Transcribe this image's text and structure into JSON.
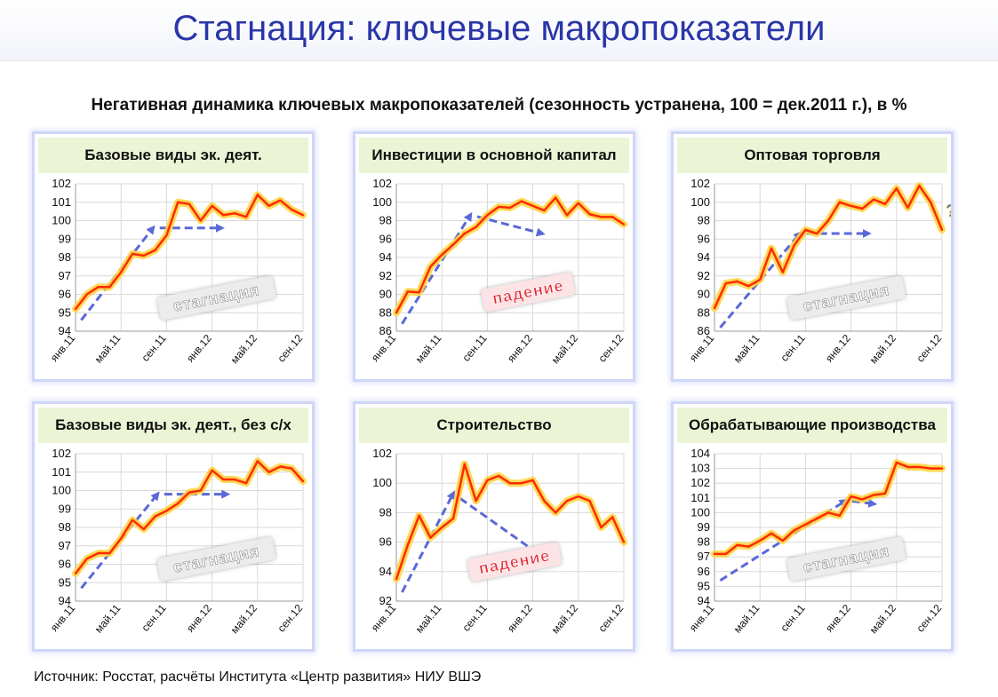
{
  "slide_title": "Стагнация: ключевые макропоказатели",
  "subtitle": "Негативная динамика ключевых макропоказателей  (сезонность устранена, 100 = дек.2011 г.), в %",
  "source": "Источник: Росстат, расчёты Института «Центр развития» НИУ ВШЭ",
  "colors": {
    "title": "#2a35a8",
    "line": "#ff2a00",
    "glow": "#ffd23a",
    "trend": "#5a68d8",
    "header_bg": "#ebf5d6",
    "panel_border": "#cfd6f6"
  },
  "chart_data": [
    {
      "type": "line",
      "title": "Базовые виды эк. деят.",
      "categories": [
        "янв.11",
        "фев.11",
        "мар.11",
        "апр.11",
        "май.11",
        "июн.11",
        "июл.11",
        "авг.11",
        "сен.11",
        "окт.11",
        "ноя.11",
        "дек.11",
        "янв.12",
        "фев.12",
        "мар.12",
        "апр.12",
        "май.12",
        "июн.12",
        "июл.12",
        "авг.12",
        "сен.12"
      ],
      "tick_labels": [
        "янв.11",
        "май.11",
        "сен.11",
        "янв.12",
        "май.12",
        "сен.12"
      ],
      "values": [
        95.2,
        96.0,
        96.4,
        96.4,
        97.2,
        98.2,
        98.1,
        98.4,
        99.2,
        101.0,
        100.9,
        100.0,
        100.8,
        100.3,
        100.4,
        100.2,
        101.4,
        100.8,
        101.1,
        100.6,
        100.3
      ],
      "ylim": [
        94,
        102
      ],
      "yticks": [
        94,
        95,
        96,
        97,
        98,
        99,
        100,
        101,
        102
      ],
      "annotation": "стагнация",
      "annotation_style": "gray"
    },
    {
      "type": "line",
      "title": "Инвестиции в основной капитал",
      "categories": [
        "янв.11",
        "фев.11",
        "мар.11",
        "апр.11",
        "май.11",
        "июн.11",
        "июл.11",
        "авг.11",
        "сен.11",
        "окт.11",
        "ноя.11",
        "дек.11",
        "янв.12",
        "фев.12",
        "мар.12",
        "апр.12",
        "май.12",
        "июн.12",
        "июл.12",
        "авг.12",
        "сен.12"
      ],
      "tick_labels": [
        "янв.11",
        "май.11",
        "сен.11",
        "янв.12",
        "май.12",
        "сен.12"
      ],
      "values": [
        88.0,
        90.3,
        90.2,
        93.0,
        94.3,
        95.4,
        96.6,
        97.3,
        98.6,
        99.5,
        99.4,
        100.1,
        99.6,
        99.1,
        100.5,
        98.6,
        99.9,
        98.7,
        98.4,
        98.4,
        97.6
      ],
      "ylim": [
        86,
        102
      ],
      "yticks": [
        86,
        88,
        90,
        92,
        94,
        96,
        98,
        100,
        102
      ],
      "annotation": "падение",
      "annotation_style": "red"
    },
    {
      "type": "line",
      "title": "Оптовая торговля",
      "categories": [
        "янв.11",
        "фев.11",
        "мар.11",
        "апр.11",
        "май.11",
        "июн.11",
        "июл.11",
        "авг.11",
        "сен.11",
        "окт.11",
        "ноя.11",
        "дек.11",
        "янв.12",
        "фев.12",
        "мар.12",
        "апр.12",
        "май.12",
        "июн.12",
        "июл.12",
        "авг.12",
        "сен.12"
      ],
      "tick_labels": [
        "янв.11",
        "май.11",
        "сен.11",
        "янв.12",
        "май.12",
        "сен.12"
      ],
      "values": [
        88.5,
        91.2,
        91.4,
        90.9,
        91.6,
        95.0,
        92.4,
        95.3,
        97.0,
        96.6,
        98.0,
        100.0,
        99.6,
        99.3,
        100.3,
        99.8,
        101.5,
        99.4,
        101.8,
        100.0,
        97.0
      ],
      "ylim": [
        86,
        102
      ],
      "yticks": [
        86,
        88,
        90,
        92,
        94,
        96,
        98,
        100,
        102
      ],
      "annotation": "стагнация",
      "annotation_style": "gray",
      "extra_label": "?"
    },
    {
      "type": "line",
      "title": "Базовые виды эк. деят., без с/х",
      "categories": [
        "янв.11",
        "фев.11",
        "мар.11",
        "апр.11",
        "май.11",
        "июн.11",
        "июл.11",
        "авг.11",
        "сен.11",
        "окт.11",
        "ноя.11",
        "дек.11",
        "янв.12",
        "фев.12",
        "мар.12",
        "апр.12",
        "май.12",
        "июн.12",
        "июл.12",
        "авг.12",
        "сен.12"
      ],
      "tick_labels": [
        "янв.11",
        "май.11",
        "сен.11",
        "янв.12",
        "май.12",
        "сен.12"
      ],
      "values": [
        95.5,
        96.3,
        96.6,
        96.6,
        97.4,
        98.4,
        97.9,
        98.6,
        98.9,
        99.3,
        99.9,
        100.0,
        101.1,
        100.6,
        100.6,
        100.4,
        101.6,
        101.0,
        101.3,
        101.2,
        100.5
      ],
      "ylim": [
        94,
        102
      ],
      "yticks": [
        94,
        95,
        96,
        97,
        98,
        99,
        100,
        101,
        102
      ],
      "annotation": "стагнация",
      "annotation_style": "gray"
    },
    {
      "type": "line",
      "title": "Строительство",
      "categories": [
        "янв.11",
        "фев.11",
        "мар.11",
        "апр.11",
        "май.11",
        "июн.11",
        "июл.11",
        "авг.11",
        "сен.11",
        "окт.11",
        "ноя.11",
        "дек.11",
        "янв.12",
        "фев.12",
        "мар.12",
        "апр.12",
        "май.12",
        "июн.12",
        "июл.12",
        "авг.12",
        "сен.12"
      ],
      "tick_labels": [
        "янв.11",
        "май.11",
        "сен.11",
        "янв.12",
        "май.12",
        "сен.12"
      ],
      "values": [
        93.5,
        95.8,
        97.8,
        96.3,
        97.0,
        97.6,
        101.3,
        98.8,
        100.2,
        100.5,
        100.0,
        100.0,
        100.2,
        98.8,
        98.0,
        98.8,
        99.1,
        98.8,
        97.0,
        97.7,
        96.0
      ],
      "ylim": [
        92,
        102
      ],
      "yticks": [
        92,
        94,
        96,
        98,
        100,
        102
      ],
      "annotation": "падение",
      "annotation_style": "red"
    },
    {
      "type": "line",
      "title": "Обрабатывающие производства",
      "categories": [
        "янв.11",
        "фев.11",
        "мар.11",
        "апр.11",
        "май.11",
        "июн.11",
        "июл.11",
        "авг.11",
        "сен.11",
        "окт.11",
        "ноя.11",
        "дек.11",
        "янв.12",
        "фев.12",
        "мар.12",
        "апр.12",
        "май.12",
        "июн.12",
        "июл.12",
        "авг.12",
        "сен.12"
      ],
      "tick_labels": [
        "янв.11",
        "май.11",
        "сен.11",
        "янв.12",
        "май.12",
        "сен.12"
      ],
      "values": [
        97.2,
        97.2,
        97.8,
        97.7,
        98.1,
        98.6,
        98.1,
        98.8,
        99.2,
        99.6,
        100.0,
        99.8,
        101.1,
        100.9,
        101.2,
        101.3,
        103.4,
        103.1,
        103.1,
        103.0,
        103.0
      ],
      "ylim": [
        94,
        104
      ],
      "yticks": [
        94,
        95,
        96,
        97,
        98,
        99,
        100,
        101,
        102,
        103,
        104
      ],
      "annotation": "стагнация",
      "annotation_style": "gray"
    }
  ]
}
